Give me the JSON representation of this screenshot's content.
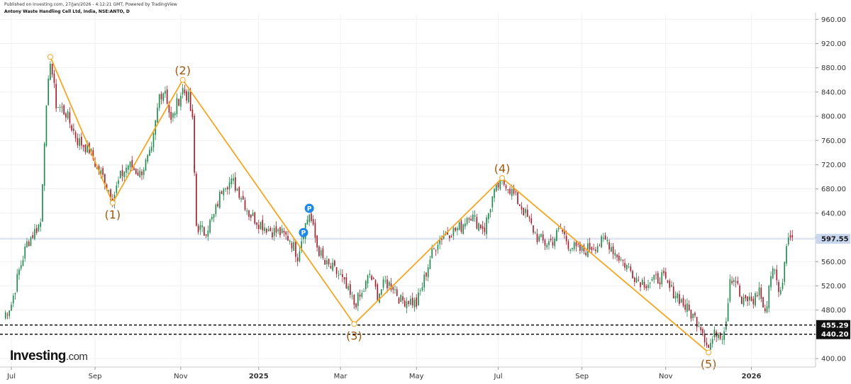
{
  "header": {
    "published": "Published on Investing.com, 27/Jan/2026 - 4:12:21 GMT, Powered by TradingView",
    "symbol": "Antony Waste Handling Cell Ltd, India, NSE:ANTO, D"
  },
  "logo": {
    "brand": "Investing",
    "suffix": ".com"
  },
  "colors": {
    "up": "#1e8a4c",
    "down": "#a61c2b",
    "wave": "#f5a623",
    "wave_label": "#a0570b",
    "price_tag_bg": "#c8d6f0",
    "marker": "#1e88e5"
  },
  "chart_data": {
    "type": "candlestick",
    "ylim": [
      390,
      965
    ],
    "y_ticks": [
      400,
      440,
      480,
      520,
      560,
      600,
      640,
      680,
      720,
      760,
      800,
      840,
      880,
      920,
      960
    ],
    "y_tick_labels": [
      "400.00",
      "440.00",
      "480.00",
      "520.00",
      "560.00",
      "600.00",
      "640.00",
      "680.00",
      "720.00",
      "760.00",
      "800.00",
      "840.00",
      "880.00",
      "920.00",
      "960.00"
    ],
    "x_ticks": [
      {
        "label": "Jul",
        "i": 4,
        "bold": false
      },
      {
        "label": "Sep",
        "i": 47,
        "bold": false
      },
      {
        "label": "Nov",
        "i": 91,
        "bold": false
      },
      {
        "label": "2025",
        "i": 131,
        "bold": true
      },
      {
        "label": "Mar",
        "i": 173,
        "bold": false
      },
      {
        "label": "May",
        "i": 212,
        "bold": false
      },
      {
        "label": "Jul",
        "i": 254,
        "bold": false
      },
      {
        "label": "Sep",
        "i": 297,
        "bold": false
      },
      {
        "label": "Nov",
        "i": 340,
        "bold": false
      },
      {
        "label": "2026",
        "i": 384,
        "bold": true
      }
    ],
    "current_price": {
      "value": 597.55,
      "label": "597.55"
    },
    "support_levels": [
      {
        "value": 455.29,
        "label": "455.29"
      },
      {
        "value": 440.2,
        "label": "440.20"
      }
    ],
    "waves": [
      {
        "label": "",
        "i": 24,
        "price": 898
      },
      {
        "label": "(1)",
        "i": 56,
        "price": 657
      },
      {
        "label": "(2)",
        "i": 92,
        "price": 860
      },
      {
        "label": "(3)",
        "i": 180,
        "price": 457
      },
      {
        "label": "(4)",
        "i": 256,
        "price": 698
      },
      {
        "label": "(5)",
        "i": 362,
        "price": 410
      }
    ],
    "markers": [
      {
        "label": "P",
        "i": 154,
        "price": 608
      },
      {
        "label": "P",
        "i": 157,
        "price": 648
      }
    ],
    "anchors": [
      [
        0,
        470
      ],
      [
        4,
        490
      ],
      [
        8,
        545
      ],
      [
        12,
        590
      ],
      [
        16,
        610
      ],
      [
        19,
        625
      ],
      [
        21,
        765
      ],
      [
        24,
        895
      ],
      [
        27,
        820
      ],
      [
        32,
        805
      ],
      [
        38,
        760
      ],
      [
        44,
        745
      ],
      [
        48,
        715
      ],
      [
        52,
        695
      ],
      [
        56,
        663
      ],
      [
        60,
        700
      ],
      [
        64,
        720
      ],
      [
        70,
        705
      ],
      [
        76,
        740
      ],
      [
        80,
        835
      ],
      [
        83,
        845
      ],
      [
        86,
        790
      ],
      [
        89,
        820
      ],
      [
        92,
        845
      ],
      [
        95,
        830
      ],
      [
        97,
        790
      ],
      [
        99,
        620
      ],
      [
        103,
        608
      ],
      [
        108,
        635
      ],
      [
        113,
        690
      ],
      [
        118,
        690
      ],
      [
        122,
        670
      ],
      [
        126,
        640
      ],
      [
        131,
        625
      ],
      [
        137,
        612
      ],
      [
        142,
        607
      ],
      [
        147,
        598
      ],
      [
        151,
        570
      ],
      [
        154,
        612
      ],
      [
        157,
        640
      ],
      [
        161,
        585
      ],
      [
        165,
        555
      ],
      [
        169,
        548
      ],
      [
        173,
        535
      ],
      [
        176,
        515
      ],
      [
        180,
        490
      ],
      [
        184,
        505
      ],
      [
        188,
        540
      ],
      [
        192,
        505
      ],
      [
        196,
        525
      ],
      [
        200,
        520
      ],
      [
        204,
        495
      ],
      [
        208,
        497
      ],
      [
        212,
        490
      ],
      [
        215,
        520
      ],
      [
        219,
        565
      ],
      [
        223,
        595
      ],
      [
        227,
        608
      ],
      [
        231,
        610
      ],
      [
        235,
        618
      ],
      [
        239,
        640
      ],
      [
        243,
        625
      ],
      [
        247,
        615
      ],
      [
        251,
        665
      ],
      [
        254,
        685
      ],
      [
        258,
        690
      ],
      [
        262,
        670
      ],
      [
        266,
        650
      ],
      [
        270,
        625
      ],
      [
        274,
        600
      ],
      [
        278,
        590
      ],
      [
        282,
        595
      ],
      [
        286,
        615
      ],
      [
        290,
        590
      ],
      [
        294,
        580
      ],
      [
        298,
        578
      ],
      [
        302,
        585
      ],
      [
        306,
        590
      ],
      [
        310,
        595
      ],
      [
        314,
        575
      ],
      [
        318,
        560
      ],
      [
        322,
        545
      ],
      [
        326,
        530
      ],
      [
        330,
        525
      ],
      [
        334,
        528
      ],
      [
        338,
        535
      ],
      [
        342,
        515
      ],
      [
        346,
        505
      ],
      [
        350,
        485
      ],
      [
        354,
        470
      ],
      [
        358,
        455
      ],
      [
        362,
        418
      ],
      [
        366,
        445
      ],
      [
        369,
        440
      ],
      [
        371,
        465
      ],
      [
        373,
        535
      ],
      [
        376,
        530
      ],
      [
        379,
        490
      ],
      [
        382,
        498
      ],
      [
        385,
        495
      ],
      [
        388,
        515
      ],
      [
        391,
        470
      ],
      [
        393,
        520
      ],
      [
        395,
        555
      ],
      [
        397,
        525
      ],
      [
        399,
        508
      ],
      [
        401,
        560
      ],
      [
        403,
        600
      ]
    ],
    "gaps": [
      {
        "from": 97,
        "to": 99,
        "gap_price": 717
      }
    ]
  }
}
